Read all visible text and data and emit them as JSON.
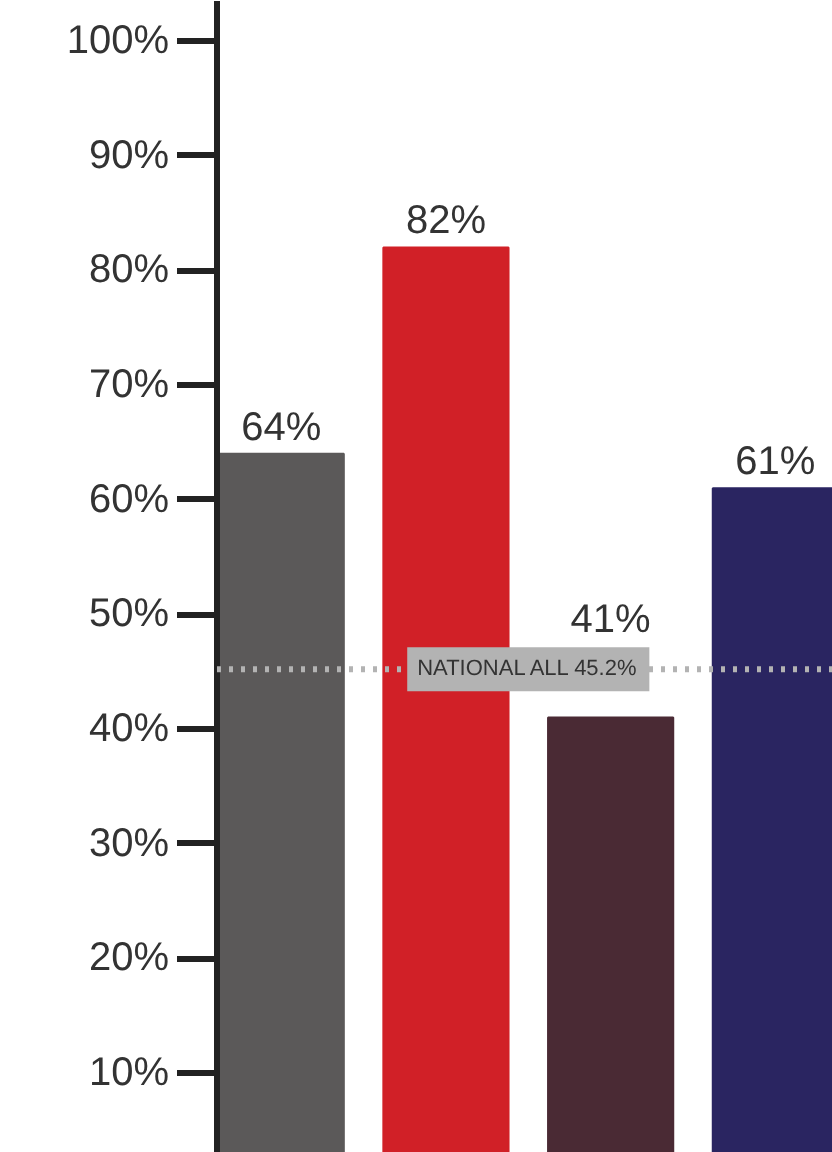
{
  "chart_data": {
    "type": "bar",
    "categories": [
      null,
      null,
      null,
      null
    ],
    "values": [
      64,
      82,
      41,
      61
    ],
    "colors": [
      "#5b5959",
      "#d12027",
      "#4a2a34",
      "#2a2561"
    ],
    "ylim": [
      3,
      103.5
    ],
    "yticks": [
      {
        "value": 10,
        "label": "10%"
      },
      {
        "value": 20,
        "label": "20%"
      },
      {
        "value": 30,
        "label": "30%"
      },
      {
        "value": 40,
        "label": "40%"
      },
      {
        "value": 50,
        "label": "50%"
      },
      {
        "value": 60,
        "label": "60%"
      },
      {
        "value": 70,
        "label": "70%"
      },
      {
        "value": 80,
        "label": "80%"
      },
      {
        "value": 90,
        "label": "90%"
      },
      {
        "value": 100,
        "label": "100%"
      }
    ],
    "value_labels": [
      "64%",
      "82%",
      "41%",
      "61%"
    ],
    "ref_lines": [
      {
        "axis": "y",
        "value": 45.2,
        "label": "NATIONAL ALL 45.2%",
        "color": "#b3b3b3",
        "line_style": "dotted"
      }
    ],
    "grid": false,
    "tick_labels": "y"
  }
}
